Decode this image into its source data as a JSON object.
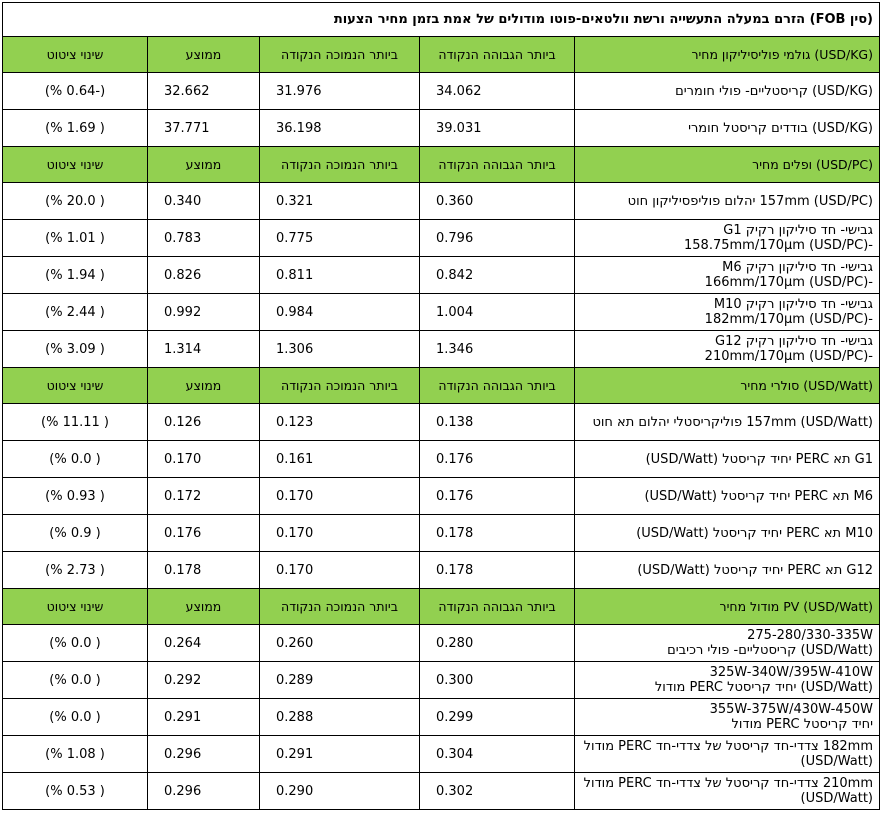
{
  "title": "(סין FOB) הזרם במעלה התעשייה ורשת וולטאים-פוטו מודולים של אמת בזמן מחיר הצעות",
  "columns": {
    "high": "ביותר הגבוהה הנקודה",
    "low": "ביותר הנמוכה הנקודה",
    "avg": "ממוצע",
    "change": "שינוי ציטוט"
  },
  "sections": [
    {
      "header": "(USD/KG) גולמי פוליסיליקון מחיר",
      "rows": [
        {
          "label": [
            "(USD/KG) קריסטליים- פולי חומרים"
          ],
          "high": "34.062",
          "low": "31.976",
          "avg": "32.662",
          "change": "(-0.64 %)"
        },
        {
          "label": [
            "(USD/KG) בודדים קריסטל חומרי"
          ],
          "high": "39.031",
          "low": "36.198",
          "avg": "37.771",
          "change": "( 1.69 %)"
        }
      ]
    },
    {
      "header": "(USD/PC) ופלים מחיר",
      "rows": [
        {
          "label": [
            "157mm (USD/PC) יהלום פוליפסיליקון חוט"
          ],
          "high": "0.360",
          "low": "0.321",
          "avg": "0.340",
          "change": "( 20.0 %)"
        },
        {
          "label": [
            "גבישי- חד סיליקון רקיק G1",
            "-158.75mm/170µm (USD/PC)"
          ],
          "high": "0.796",
          "low": "0.775",
          "avg": "0.783",
          "change": "( 1.01 %)"
        },
        {
          "label": [
            "גבישי- חד סיליקון רקיק M6",
            "-166mm/170µm (USD/PC)"
          ],
          "high": "0.842",
          "low": "0.811",
          "avg": "0.826",
          "change": "( 1.94 %)"
        },
        {
          "label": [
            "גבישי- חד סיליקון רקיק M10",
            "-182mm/170µm (USD/PC)"
          ],
          "high": "1.004",
          "low": "0.984",
          "avg": "0.992",
          "change": "( 2.44 %)"
        },
        {
          "label": [
            "גבישי- חד סיליקון רקיק G12",
            "-210mm/170µm (USD/PC)"
          ],
          "high": "1.346",
          "low": "1.306",
          "avg": "1.314",
          "change": "( 3.09 %)"
        }
      ]
    },
    {
      "header": "(USD/Watt) סולרי מחיר",
      "rows": [
        {
          "label": [
            "157mm (USD/Watt) פוליקריסטלי יהלום תא חוט"
          ],
          "high": "0.138",
          "low": "0.123",
          "avg": "0.126",
          "change": "( 11.11 %)"
        },
        {
          "label": [
            "G1 תא PERC יחיד קריסטל (USD/Watt)"
          ],
          "high": "0.176",
          "low": "0.161",
          "avg": "0.170",
          "change": "( 0.0 %)"
        },
        {
          "label": [
            "M6 תא PERC יחיד קריסטל (USD/Watt)"
          ],
          "high": "0.176",
          "low": "0.170",
          "avg": "0.172",
          "change": "( 0.93 %)"
        },
        {
          "label": [
            "M10 תא PERC יחיד קריסטל (USD/Watt)"
          ],
          "high": "0.178",
          "low": "0.170",
          "avg": "0.176",
          "change": "( 0.9 %)"
        },
        {
          "label": [
            "G12 תא PERC יחיד קריסטל (USD/Watt)"
          ],
          "high": "0.178",
          "low": "0.170",
          "avg": "0.178",
          "change": "( 2.73 %)"
        }
      ]
    },
    {
      "header": "PV (USD/Watt) מודול מחיר",
      "rows": [
        {
          "label": [
            "275-280/330-335W",
            "(USD/Watt) קריסטליים- פולי רכיבים"
          ],
          "high": "0.280",
          "low": "0.260",
          "avg": "0.264",
          "change": "( 0.0 %)"
        },
        {
          "label": [
            "325W-340W/395W-410W",
            "(USD/Watt) יחיד קריסטל PERC מודול"
          ],
          "high": "0.300",
          "low": "0.289",
          "avg": "0.292",
          "change": "( 0.0 %)"
        },
        {
          "label": [
            "355W-375W/430W-450W",
            "יחיד קריסטל PERC מודול"
          ],
          "high": "0.299",
          "low": "0.288",
          "avg": "0.291",
          "change": "( 0.0 %)"
        },
        {
          "label": [
            "182mm צדדי-חד קריסטל של צדדי-חד PERC מודול",
            "(USD/Watt)"
          ],
          "high": "0.304",
          "low": "0.291",
          "avg": "0.296",
          "change": "( 1.08 %)"
        },
        {
          "label": [
            "210mm צדדי-חד קריסטל של צדדי-חד PERC מודול",
            "(USD/Watt)"
          ],
          "high": "0.302",
          "low": "0.290",
          "avg": "0.296",
          "change": "( 0.53 %)"
        }
      ]
    }
  ]
}
